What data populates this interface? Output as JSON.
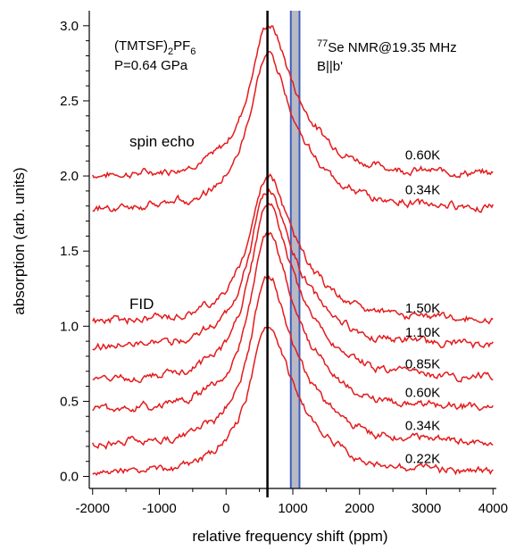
{
  "chart_data": {
    "type": "line",
    "title": "",
    "xlabel": "relative frequency shift (ppm)",
    "ylabel": "absorption (arb. units)",
    "xlim": [
      -2050,
      4050
    ],
    "ylim": [
      -0.08,
      3.1
    ],
    "xticks": [
      -2000,
      -1000,
      0,
      1000,
      2000,
      3000,
      4000
    ],
    "yticks": [
      0.0,
      0.5,
      1.0,
      1.5,
      2.0,
      2.5,
      3.0
    ],
    "xtick_labels": [
      "-2000",
      "-1000",
      "0",
      "1000",
      "2000",
      "3000",
      "4000"
    ],
    "ytick_labels": [
      "0.0",
      "0.5",
      "1.0",
      "1.5",
      "2.0",
      "2.5",
      "3.0"
    ],
    "grid": false,
    "series_color": "#e41a1c",
    "reference_line": {
      "x": 620,
      "color": "#000000"
    },
    "shaded_band": {
      "x_from": 970,
      "x_to": 1100,
      "fill": "#b9b9c4",
      "edge": "#3b5fc0"
    },
    "annotations": {
      "sample_formula": "(TMTSF)",
      "sample_sub1": "2",
      "sample_mid": "PF",
      "sample_sub2": "6",
      "pressure": "P=0.64 GPa",
      "nmr_sup": "77",
      "nmr_text": "Se NMR@19.35 MHz",
      "field": "B||b'",
      "group_spin_echo": "spin echo",
      "group_fid": "FID"
    },
    "series": [
      {
        "name": "0.60K",
        "group": "spin echo",
        "offset": 2.0,
        "peak": 3.0,
        "label_x": 3000,
        "label_y": 2.11
      },
      {
        "name": "0.34K",
        "group": "spin echo",
        "offset": 1.78,
        "peak": 2.8,
        "label_x": 3000,
        "label_y": 1.88
      },
      {
        "name": "1.50K",
        "group": "FID",
        "offset": 1.03,
        "peak": 2.0,
        "label_x": 3000,
        "label_y": 1.09
      },
      {
        "name": "1.10K",
        "group": "FID",
        "offset": 0.86,
        "peak": 1.9,
        "label_x": 3000,
        "label_y": 0.93
      },
      {
        "name": "0.85K",
        "group": "FID",
        "offset": 0.64,
        "peak": 1.8,
        "label_x": 3000,
        "label_y": 0.72
      },
      {
        "name": "0.60K",
        "group": "FID",
        "offset": 0.44,
        "peak": 1.6,
        "label_x": 3000,
        "label_y": 0.53
      },
      {
        "name": "0.34K",
        "group": "FID",
        "offset": 0.21,
        "peak": 1.32,
        "label_x": 3000,
        "label_y": 0.31
      },
      {
        "name": "0.22K",
        "group": "FID",
        "offset": 0.02,
        "peak": 1.0,
        "label_x": 3000,
        "label_y": 0.09
      }
    ]
  }
}
